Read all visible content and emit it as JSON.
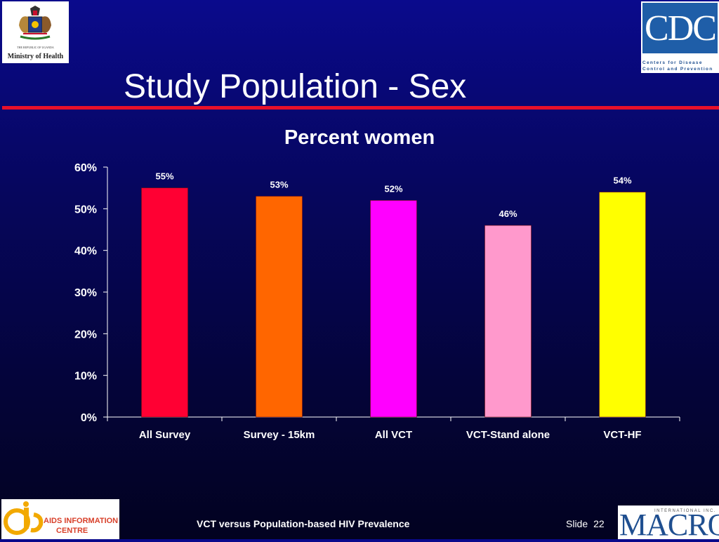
{
  "slide": {
    "title": "Study Population - Sex",
    "footer_text": "VCT versus Population-based HIV Prevalence",
    "slide_label": "Slide",
    "slide_number": "22"
  },
  "logos": {
    "uganda_subtitle": "THE REPUBLIC OF UGANDA",
    "uganda_name": "Ministry of Health",
    "cdc_mark": "CDC",
    "cdc_line1": "Centers for Disease",
    "cdc_line2": "Control and Prevention",
    "aic_name_line1": "AIDS INFORMATION",
    "aic_name_line2": "CENTRE",
    "macro_intl": "INTERNATIONAL INC.",
    "macro_name": "MACRO"
  },
  "colors": {
    "background": "#06065e",
    "title_rule": "#e8102a"
  },
  "chart_data": {
    "type": "bar",
    "title": "Percent women",
    "categories": [
      "All Survey",
      "Survey - 15km",
      "All VCT",
      "VCT-Stand alone",
      "VCT-HF"
    ],
    "values": [
      55,
      53,
      52,
      46,
      54
    ],
    "data_labels": [
      "55%",
      "53%",
      "52%",
      "46%",
      "54%"
    ],
    "bar_colors": [
      "#ff0033",
      "#ff6600",
      "#ff00ff",
      "#ff99cc",
      "#ffff00"
    ],
    "ylim": [
      0,
      60
    ],
    "yticks": [
      0,
      10,
      20,
      30,
      40,
      50,
      60
    ],
    "ytick_labels": [
      "0%",
      "10%",
      "20%",
      "30%",
      "40%",
      "50%",
      "60%"
    ],
    "xlabel": "",
    "ylabel": "",
    "grid": false,
    "legend": false
  }
}
